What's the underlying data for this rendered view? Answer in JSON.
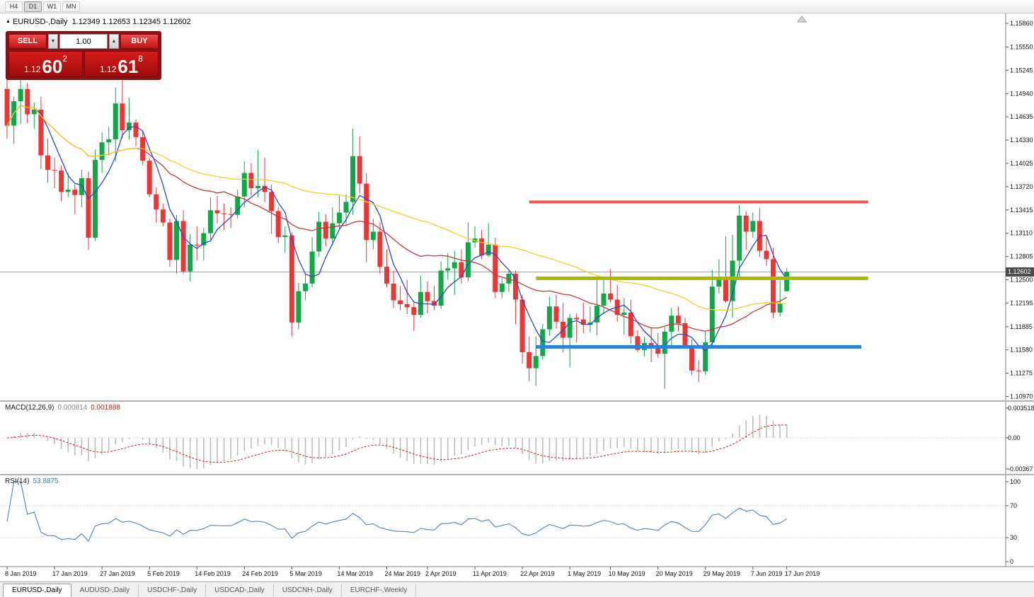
{
  "toolbar": {
    "timeframes": [
      {
        "label": "H4",
        "active": false
      },
      {
        "label": "D1",
        "active": true
      },
      {
        "label": "W1",
        "active": false
      },
      {
        "label": "MN",
        "active": false
      }
    ]
  },
  "icons": {
    "chart_marker": "▲",
    "volume_down": "▼",
    "volume_up": "▲"
  },
  "chart": {
    "title_symbol": "EURUSD-,Daily",
    "title_ohlc": "1.12349 1.12653 1.12345 1.12602"
  },
  "trade_panel": {
    "sell_label": "SELL",
    "buy_label": "BUY",
    "volume": "1.00",
    "sell_price_small": "1.12",
    "sell_price_big": "60",
    "sell_price_sup": "2",
    "buy_price_small": "1.12",
    "buy_price_big": "61",
    "buy_price_sup": "8"
  },
  "chart_data": {
    "type": "candlestick",
    "symbol": "EURUSD-",
    "timeframe": "Daily",
    "current_ohlc": {
      "open": 1.12349,
      "high": 1.12653,
      "low": 1.12345,
      "close": 1.12602
    },
    "current_price": 1.12602,
    "price_badge": "1.12602",
    "grid": false,
    "ylim": [
      1.1091,
      1.1599
    ],
    "y_axis_ticks": [
      "1.15860",
      "1.15550",
      "1.15245",
      "1.14940",
      "1.14635",
      "1.14330",
      "1.14025",
      "1.13720",
      "1.13415",
      "1.13110",
      "1.12805",
      "1.12500",
      "1.12195",
      "1.11885",
      "1.11580",
      "1.11275",
      "1.10970"
    ],
    "x_axis_ticks": [
      {
        "label": "8 Jan 2019",
        "index": 0
      },
      {
        "label": "17 Jan 2019",
        "index": 7
      },
      {
        "label": "27 Jan 2019",
        "index": 14
      },
      {
        "label": "5 Feb 2019",
        "index": 21
      },
      {
        "label": "14 Feb 2019",
        "index": 28
      },
      {
        "label": "24 Feb 2019",
        "index": 35
      },
      {
        "label": "5 Mar 2019",
        "index": 42
      },
      {
        "label": "14 Mar 2019",
        "index": 49
      },
      {
        "label": "24 Mar 2019",
        "index": 56
      },
      {
        "label": "2 Apr 2019",
        "index": 62
      },
      {
        "label": "11 Apr 2019",
        "index": 69
      },
      {
        "label": "22 Apr 2019",
        "index": 76
      },
      {
        "label": "1 May 2019",
        "index": 83
      },
      {
        "label": "10 May 2019",
        "index": 89
      },
      {
        "label": "20 May 2019",
        "index": 96
      },
      {
        "label": "29 May 2019",
        "index": 103
      },
      {
        "label": "7 Jun 2019",
        "index": 110
      },
      {
        "label": "17 Jun 2019",
        "index": 115
      }
    ],
    "colors": {
      "bull": "#10a846",
      "bear": "#ef3434"
    },
    "moving_averages": [
      {
        "period": 5,
        "color": "#2b47c4"
      },
      {
        "period": 20,
        "color": "#c13a3a"
      },
      {
        "period": 50,
        "color": "#f3cf2a"
      }
    ],
    "levels": [
      {
        "name": "resistance-line-red",
        "price": 1.1352,
        "from": 77,
        "to": 127,
        "width": 4,
        "color": "#f15151"
      },
      {
        "name": "pivot-line-olive",
        "price": 1.1252,
        "from": 78,
        "to": 127,
        "width": 5,
        "color": "#aab800"
      },
      {
        "name": "support-line-blue",
        "price": 1.1162,
        "from": 78,
        "to": 126,
        "width": 5,
        "color": "#2a82d6"
      }
    ],
    "macd": {
      "label": "MACD(12,26,9)",
      "fast": 12,
      "slow": 26,
      "signal_period": 9,
      "main_value": "0.000814",
      "signal_value": "0.001888",
      "axis": [
        "0.003518",
        "0.00",
        "-0.00367"
      ]
    },
    "rsi": {
      "label": "RSI(14)",
      "period": 14,
      "value": "53.8875",
      "axis": [
        "100",
        "70",
        "30",
        "0"
      ],
      "levels": [
        70,
        30
      ]
    },
    "candles": [
      [
        1.15,
        1.1518,
        1.1435,
        1.1452
      ],
      [
        1.1452,
        1.149,
        1.1428,
        1.1484
      ],
      [
        1.1484,
        1.1512,
        1.1454,
        1.15
      ],
      [
        1.15,
        1.1508,
        1.1455,
        1.1467
      ],
      [
        1.1467,
        1.1482,
        1.1448,
        1.1473
      ],
      [
        1.1473,
        1.149,
        1.1395,
        1.1413
      ],
      [
        1.1413,
        1.1435,
        1.1377,
        1.1394
      ],
      [
        1.1394,
        1.141,
        1.137,
        1.1393
      ],
      [
        1.1393,
        1.14,
        1.1353,
        1.1365
      ],
      [
        1.1365,
        1.139,
        1.1358,
        1.1368
      ],
      [
        1.1368,
        1.1375,
        1.1336,
        1.1361
      ],
      [
        1.1361,
        1.1394,
        1.1345,
        1.1383
      ],
      [
        1.1383,
        1.1392,
        1.1289,
        1.1305
      ],
      [
        1.1305,
        1.142,
        1.1301,
        1.1407
      ],
      [
        1.1407,
        1.1443,
        1.139,
        1.143
      ],
      [
        1.143,
        1.145,
        1.1413,
        1.1434
      ],
      [
        1.1434,
        1.1502,
        1.1405,
        1.1481
      ],
      [
        1.1481,
        1.1514,
        1.1435,
        1.1446
      ],
      [
        1.1446,
        1.1489,
        1.1434,
        1.1456
      ],
      [
        1.1456,
        1.146,
        1.1425,
        1.1437
      ],
      [
        1.1437,
        1.1445,
        1.14,
        1.1406
      ],
      [
        1.1406,
        1.141,
        1.1358,
        1.1362
      ],
      [
        1.1362,
        1.1371,
        1.1325,
        1.1342
      ],
      [
        1.1342,
        1.135,
        1.132,
        1.1325
      ],
      [
        1.1325,
        1.133,
        1.1267,
        1.1276
      ],
      [
        1.1276,
        1.1335,
        1.1258,
        1.1327
      ],
      [
        1.1327,
        1.1341,
        1.1258,
        1.1261
      ],
      [
        1.1261,
        1.131,
        1.1248,
        1.1296
      ],
      [
        1.1296,
        1.132,
        1.1275,
        1.1295
      ],
      [
        1.1295,
        1.1318,
        1.1275,
        1.1311
      ],
      [
        1.1311,
        1.1358,
        1.1302,
        1.1341
      ],
      [
        1.1341,
        1.136,
        1.1324,
        1.1337
      ],
      [
        1.1337,
        1.135,
        1.1315,
        1.1336
      ],
      [
        1.1336,
        1.1345,
        1.1318,
        1.1335
      ],
      [
        1.1335,
        1.1368,
        1.133,
        1.1359
      ],
      [
        1.1359,
        1.1405,
        1.1345,
        1.139
      ],
      [
        1.139,
        1.1403,
        1.136,
        1.137
      ],
      [
        1.137,
        1.142,
        1.1358,
        1.1373
      ],
      [
        1.1373,
        1.141,
        1.1352,
        1.1365
      ],
      [
        1.1365,
        1.1375,
        1.131,
        1.134
      ],
      [
        1.134,
        1.1345,
        1.1298,
        1.1306
      ],
      [
        1.1306,
        1.132,
        1.1285,
        1.1308
      ],
      [
        1.1308,
        1.1312,
        1.1176,
        1.1194
      ],
      [
        1.1194,
        1.1246,
        1.1185,
        1.1235
      ],
      [
        1.1235,
        1.1258,
        1.1223,
        1.1245
      ],
      [
        1.1245,
        1.1306,
        1.124,
        1.1287
      ],
      [
        1.1287,
        1.1339,
        1.128,
        1.1326
      ],
      [
        1.1326,
        1.1336,
        1.1294,
        1.1304
      ],
      [
        1.1304,
        1.1345,
        1.1295,
        1.1324
      ],
      [
        1.1324,
        1.136,
        1.1317,
        1.1338
      ],
      [
        1.1338,
        1.1362,
        1.1322,
        1.1352
      ],
      [
        1.1352,
        1.1448,
        1.1335,
        1.1412
      ],
      [
        1.1412,
        1.1438,
        1.1363,
        1.1376
      ],
      [
        1.1376,
        1.139,
        1.1273,
        1.1302
      ],
      [
        1.1302,
        1.133,
        1.129,
        1.1313
      ],
      [
        1.1313,
        1.1325,
        1.1258,
        1.1267
      ],
      [
        1.1267,
        1.129,
        1.124,
        1.1245
      ],
      [
        1.1245,
        1.1262,
        1.1213,
        1.1223
      ],
      [
        1.1223,
        1.1242,
        1.121,
        1.1218
      ],
      [
        1.1218,
        1.125,
        1.1205,
        1.1214
      ],
      [
        1.1214,
        1.1222,
        1.1183,
        1.1204
      ],
      [
        1.1204,
        1.1255,
        1.12,
        1.1234
      ],
      [
        1.1234,
        1.1248,
        1.1206,
        1.1222
      ],
      [
        1.1222,
        1.1242,
        1.121,
        1.1216
      ],
      [
        1.1216,
        1.1274,
        1.1212,
        1.1262
      ],
      [
        1.1262,
        1.1285,
        1.125,
        1.1265
      ],
      [
        1.1265,
        1.1288,
        1.123,
        1.1273
      ],
      [
        1.1273,
        1.129,
        1.1245,
        1.1253
      ],
      [
        1.1253,
        1.1325,
        1.1248,
        1.1299
      ],
      [
        1.1299,
        1.132,
        1.1292,
        1.1304
      ],
      [
        1.1304,
        1.1315,
        1.1277,
        1.1282
      ],
      [
        1.1282,
        1.1324,
        1.128,
        1.1296
      ],
      [
        1.1296,
        1.1305,
        1.1226,
        1.1234
      ],
      [
        1.1234,
        1.1252,
        1.1226,
        1.1245
      ],
      [
        1.1245,
        1.1262,
        1.1234,
        1.1258
      ],
      [
        1.1258,
        1.1262,
        1.1192,
        1.1224
      ],
      [
        1.1224,
        1.123,
        1.114,
        1.1155
      ],
      [
        1.1155,
        1.1176,
        1.1117,
        1.1134
      ],
      [
        1.1134,
        1.1176,
        1.1111,
        1.115
      ],
      [
        1.115,
        1.1192,
        1.1145,
        1.1185
      ],
      [
        1.1185,
        1.1228,
        1.1176,
        1.1215
      ],
      [
        1.1215,
        1.123,
        1.1186,
        1.1195
      ],
      [
        1.1195,
        1.122,
        1.1155,
        1.1174
      ],
      [
        1.1174,
        1.1205,
        1.1135,
        1.12
      ],
      [
        1.12,
        1.1206,
        1.1168,
        1.1198
      ],
      [
        1.1198,
        1.122,
        1.118,
        1.1191
      ],
      [
        1.1191,
        1.1215,
        1.1181,
        1.1194
      ],
      [
        1.1194,
        1.1251,
        1.1177,
        1.1216
      ],
      [
        1.1216,
        1.1254,
        1.1205,
        1.1232
      ],
      [
        1.1232,
        1.1264,
        1.122,
        1.1224
      ],
      [
        1.1224,
        1.1243,
        1.1195,
        1.1204
      ],
      [
        1.1204,
        1.1226,
        1.1178,
        1.1207
      ],
      [
        1.1207,
        1.1224,
        1.1166,
        1.1176
      ],
      [
        1.1176,
        1.1184,
        1.1155,
        1.1158
      ],
      [
        1.1158,
        1.1175,
        1.115,
        1.1167
      ],
      [
        1.1167,
        1.1188,
        1.1142,
        1.1162
      ],
      [
        1.1162,
        1.118,
        1.1148,
        1.1153
      ],
      [
        1.1153,
        1.1188,
        1.1107,
        1.1182
      ],
      [
        1.1182,
        1.1213,
        1.1161,
        1.1203
      ],
      [
        1.1203,
        1.1215,
        1.1182,
        1.1193
      ],
      [
        1.1193,
        1.12,
        1.116,
        1.1162
      ],
      [
        1.1162,
        1.1172,
        1.1125,
        1.1131
      ],
      [
        1.1131,
        1.1145,
        1.1116,
        1.113
      ],
      [
        1.113,
        1.1182,
        1.1125,
        1.1168
      ],
      [
        1.1168,
        1.1263,
        1.116,
        1.1241
      ],
      [
        1.1241,
        1.1277,
        1.1232,
        1.1253
      ],
      [
        1.1253,
        1.1307,
        1.122,
        1.1222
      ],
      [
        1.1222,
        1.1309,
        1.12,
        1.1275
      ],
      [
        1.1275,
        1.1348,
        1.1251,
        1.1334
      ],
      [
        1.1334,
        1.134,
        1.1289,
        1.1313
      ],
      [
        1.1313,
        1.1338,
        1.1305,
        1.1327
      ],
      [
        1.1327,
        1.1344,
        1.128,
        1.1288
      ],
      [
        1.1288,
        1.1306,
        1.1268,
        1.1277
      ],
      [
        1.1277,
        1.1292,
        1.12,
        1.1207
      ],
      [
        1.1207,
        1.1249,
        1.1202,
        1.1219
      ],
      [
        1.12349,
        1.12653,
        1.12345,
        1.12602
      ]
    ]
  },
  "bottom_tabs": [
    {
      "label": "EURUSD-,Daily",
      "active": true
    },
    {
      "label": "AUDUSD-,Daily",
      "active": false
    },
    {
      "label": "USDCHF-,Daily",
      "active": false
    },
    {
      "label": "USDCAD-,Daily",
      "active": false
    },
    {
      "label": "USDCNH-,Daily",
      "active": false
    },
    {
      "label": "EURCHF-,Weekly",
      "active": false
    }
  ]
}
